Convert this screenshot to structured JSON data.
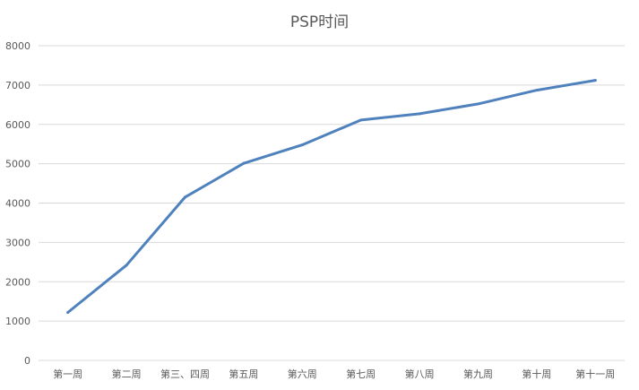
{
  "chart_data": {
    "type": "line",
    "title": "PSP时间",
    "xlabel": "",
    "ylabel": "",
    "categories": [
      "第一周",
      "第二周",
      "第三、四周",
      "第五周",
      "第六周",
      "第七周",
      "第八周",
      "第九周",
      "第十周",
      "第十一周"
    ],
    "series": [
      {
        "values": [
          1220,
          2420,
          4150,
          5010,
          5480,
          6110,
          6270,
          6520,
          6870,
          7120
        ]
      }
    ],
    "ylim": [
      0,
      8000
    ],
    "yticks": [
      0,
      1000,
      2000,
      3000,
      4000,
      5000,
      6000,
      7000,
      8000
    ],
    "grid": true,
    "legend": "none",
    "colors": {
      "line": "#4f81bd",
      "grid": "#d9d9d9",
      "text": "#595959"
    }
  }
}
